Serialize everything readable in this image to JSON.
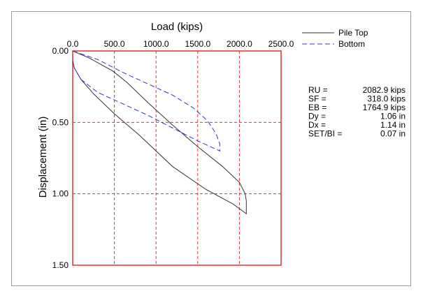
{
  "chart_data": {
    "type": "line",
    "xlabel": "Load (kips)",
    "ylabel": "Displacement (in)",
    "xlim": [
      0,
      2500
    ],
    "ylim": [
      0,
      1.5
    ],
    "x_ticks": [
      "0.0",
      "500.0",
      "1000.0",
      "1500.0",
      "2000.0",
      "2500.0"
    ],
    "y_ticks": [
      "0.00",
      "0.50",
      "1.00",
      "1.50"
    ],
    "x_axis_position": "top",
    "y_axis_inverted": true,
    "grid": true,
    "grid_color": "#e8302a",
    "legend_position": "top-right",
    "series": [
      {
        "name": "Pile Top",
        "color": "#333333",
        "style": "solid",
        "points": [
          [
            0,
            0
          ],
          [
            200,
            0.05
          ],
          [
            480,
            0.14
          ],
          [
            650,
            0.22
          ],
          [
            900,
            0.36
          ],
          [
            1200,
            0.52
          ],
          [
            1500,
            0.67
          ],
          [
            1800,
            0.81
          ],
          [
            2000,
            0.92
          ],
          [
            2070,
            1.0
          ],
          [
            2082.9,
            1.05
          ],
          [
            2082.9,
            1.14
          ],
          [
            1920,
            1.07
          ],
          [
            1600,
            0.97
          ],
          [
            1200,
            0.81
          ],
          [
            800,
            0.59
          ],
          [
            500,
            0.44
          ],
          [
            250,
            0.3
          ],
          [
            100,
            0.2
          ],
          [
            20,
            0.12
          ],
          [
            0,
            0.07
          ]
        ]
      },
      {
        "name": "Bottom",
        "color": "#3333cc",
        "style": "dashed",
        "points": [
          [
            0,
            0
          ],
          [
            300,
            0.06
          ],
          [
            600,
            0.15
          ],
          [
            900,
            0.23
          ],
          [
            1200,
            0.31
          ],
          [
            1450,
            0.4
          ],
          [
            1620,
            0.49
          ],
          [
            1720,
            0.58
          ],
          [
            1764.9,
            0.65
          ],
          [
            1764.9,
            0.7
          ],
          [
            1500,
            0.63
          ],
          [
            1200,
            0.54
          ],
          [
            900,
            0.45
          ],
          [
            600,
            0.37
          ],
          [
            300,
            0.29
          ],
          [
            100,
            0.2
          ],
          [
            20,
            0.12
          ],
          [
            0,
            0.08
          ]
        ]
      }
    ]
  },
  "results": [
    {
      "label": "RU =",
      "value": "2082.9 kips"
    },
    {
      "label": "SF =",
      "value": "318.0 kips"
    },
    {
      "label": "EB =",
      "value": "1764.9 kips"
    },
    {
      "label": "Dy =",
      "value": "1.06 in"
    },
    {
      "label": "Dx =",
      "value": "1.14 in"
    },
    {
      "label": "SET/BI =",
      "value": "0.07 in"
    }
  ]
}
